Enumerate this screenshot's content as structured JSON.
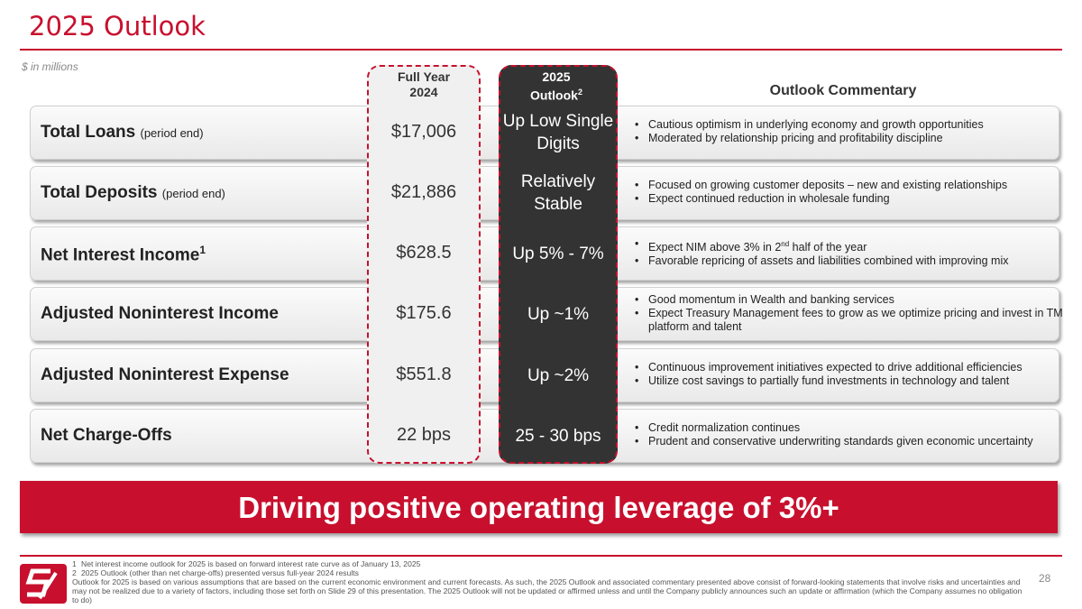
{
  "header": {
    "title": "2025 Outlook",
    "unit_note": "$ in millions"
  },
  "columns": {
    "full_year": "Full Year 2024",
    "outlook": "2025 Outlook",
    "outlook_sup": "2",
    "commentary": "Outlook Commentary"
  },
  "rows": [
    {
      "label": "Total Loans",
      "qualifier": "(period end)",
      "value": "$17,006",
      "outlook": "Up Low Single Digits",
      "bullets": [
        "Cautious optimism in underlying economy and growth opportunities",
        "Moderated by relationship pricing and profitability discipline"
      ]
    },
    {
      "label": "Total Deposits",
      "qualifier": "(period end)",
      "value": "$21,886",
      "outlook": "Relatively Stable",
      "bullets": [
        "Focused on growing customer deposits – new and existing relationships",
        "Expect continued reduction in wholesale funding"
      ]
    },
    {
      "label": "Net Interest Income",
      "label_sup": "1",
      "value": "$628.5",
      "outlook": "Up 5% - 7%",
      "bullets": [
        {
          "text": "Expect NIM above 3% in 2",
          "sup": "nd",
          "rest": " half of the year"
        },
        "Favorable repricing of assets and liabilities combined with improving mix"
      ]
    },
    {
      "label": "Adjusted Noninterest Income",
      "value": "$175.6",
      "outlook": "Up ~1%",
      "bullets": [
        "Good momentum in Wealth and banking services",
        "Expect Treasury Management fees to grow as we optimize pricing and invest in TM platform and talent"
      ]
    },
    {
      "label": "Adjusted Noninterest Expense",
      "value": "$551.8",
      "outlook": "Up ~2%",
      "bullets": [
        "Continuous improvement initiatives expected to drive additional efficiencies",
        "Utilize cost savings to partially fund investments in technology and talent"
      ]
    },
    {
      "label": "Net Charge-Offs",
      "value": "22 bps",
      "outlook": "25 - 30 bps",
      "bullets": [
        "Credit normalization continues",
        "Prudent and conservative underwriting standards given economic uncertainty"
      ]
    }
  ],
  "banner": "Driving positive operating leverage of 3%+",
  "footnotes": [
    {
      "number": "1",
      "text": "Net interest income outlook for 2025 is based on forward interest rate curve as of January 13, 2025"
    },
    {
      "number": "2",
      "text": "2025 Outlook (other than net charge-offs) presented versus full-year 2024 results"
    },
    {
      "text": "Outlook for 2025 is based on various assumptions that are based on the current economic environment and current forecasts. As such, the 2025 Outlook and associated commentary presented above consist of forward-looking statements that involve risks and uncertainties and may not be realized due to a variety of factors, including those set forth on Slide 29 of this presentation. The 2025 Outlook will not be updated or affirmed unless and until the Company publicly announces such an update or affirmation (which the Company assumes no obligation to do)"
    }
  ],
  "page_number": "28"
}
